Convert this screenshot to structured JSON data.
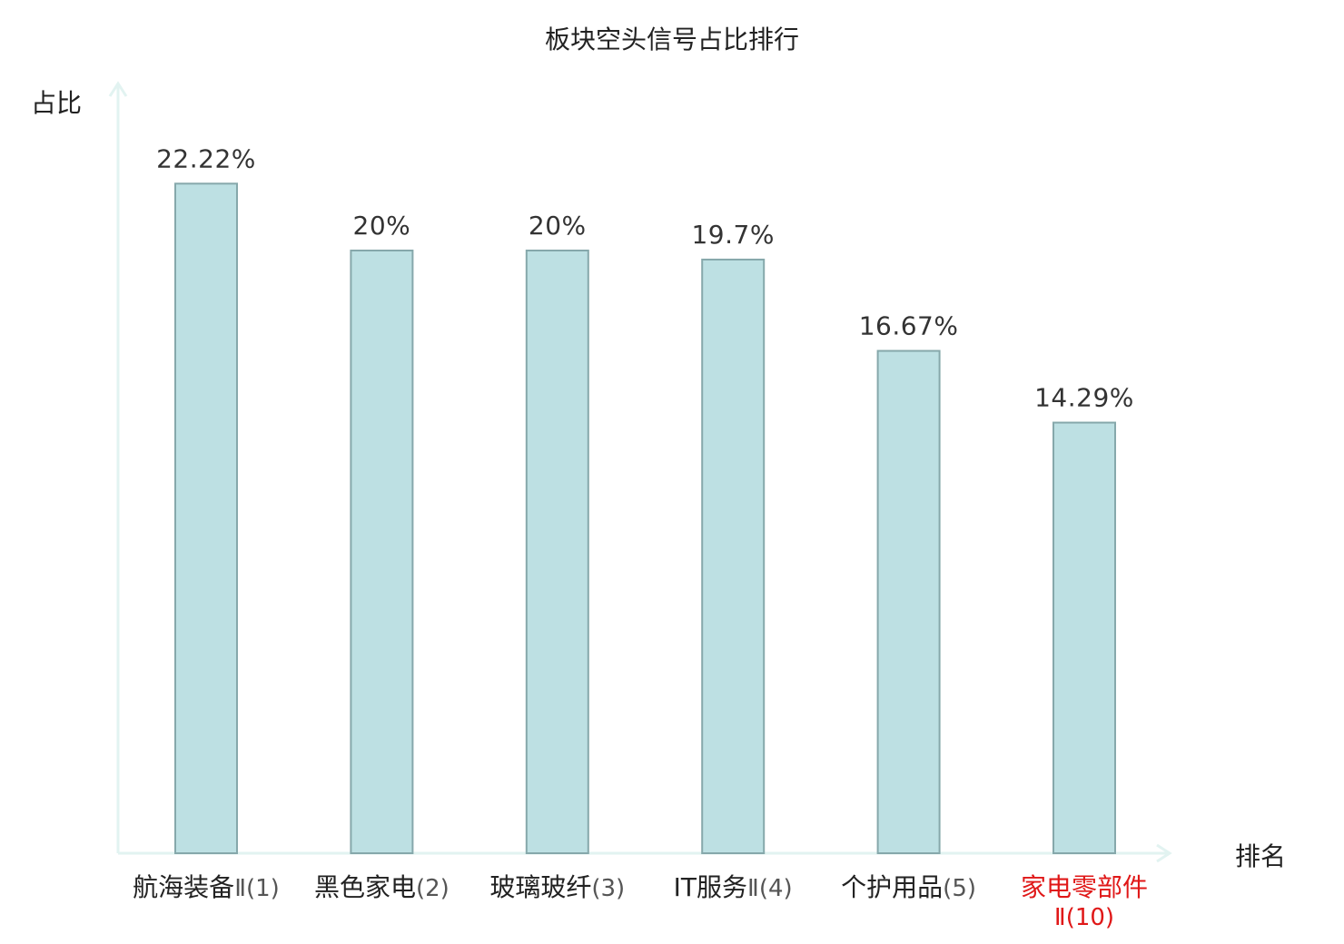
{
  "chart_data": {
    "type": "bar",
    "title": "板块空头信号占比排行",
    "ylabel": "占比",
    "xlabel": "排名",
    "categories": [
      {
        "name": "航海装备",
        "rank": "Ⅱ(1)",
        "highlight": false
      },
      {
        "name": "黑色家电",
        "rank": "(2)",
        "highlight": false
      },
      {
        "name": "玻璃玻纤",
        "rank": "(3)",
        "highlight": false
      },
      {
        "name": "IT服务",
        "rank": "Ⅱ(4)",
        "highlight": false
      },
      {
        "name": "个护用品",
        "rank": "(5)",
        "highlight": false
      },
      {
        "name": "家电零部件",
        "rank": "Ⅱ(10)",
        "highlight": true
      }
    ],
    "values": [
      22.22,
      20,
      20,
      19.7,
      16.67,
      14.29
    ],
    "value_labels": [
      "22.22%",
      "20%",
      "20%",
      "19.7%",
      "16.67%",
      "14.29%"
    ],
    "ylim": [
      0,
      25
    ],
    "grid": false,
    "legend": "none",
    "colors": {
      "bar_fill": "#bde0e3",
      "bar_stroke": "#86a8ab",
      "axis": "#e2f3f1",
      "highlight_text": "#e01818"
    }
  }
}
